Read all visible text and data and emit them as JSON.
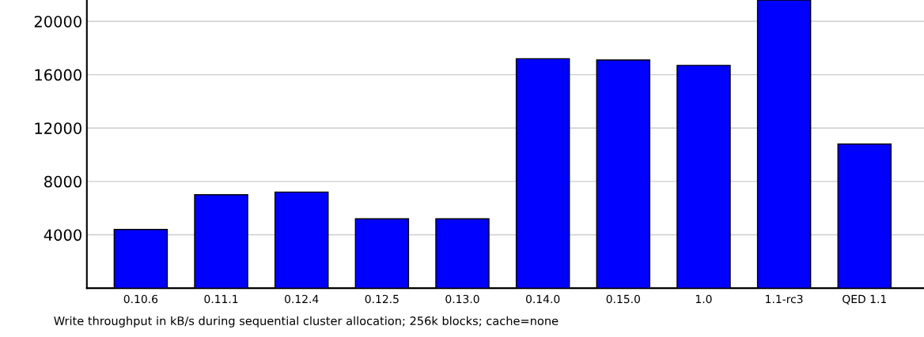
{
  "chart_data": {
    "type": "bar",
    "categories": [
      "0.10.6",
      "0.11.1",
      "0.12.4",
      "0.12.5",
      "0.13.0",
      "0.14.0",
      "0.15.0",
      "1.0",
      "1.1-rc3",
      "QED 1.1"
    ],
    "values": [
      4400,
      7000,
      7200,
      5200,
      5200,
      17200,
      17100,
      16700,
      21600,
      10800
    ],
    "color": "#0000ff",
    "ylim": [
      0,
      21600
    ],
    "yticks": [
      4000,
      8000,
      12000,
      16000,
      20000
    ],
    "grid": "y",
    "annotations": [
      "Write throughput in kB/s during sequential cluster allocation; 256k blocks; cache=none"
    ]
  }
}
